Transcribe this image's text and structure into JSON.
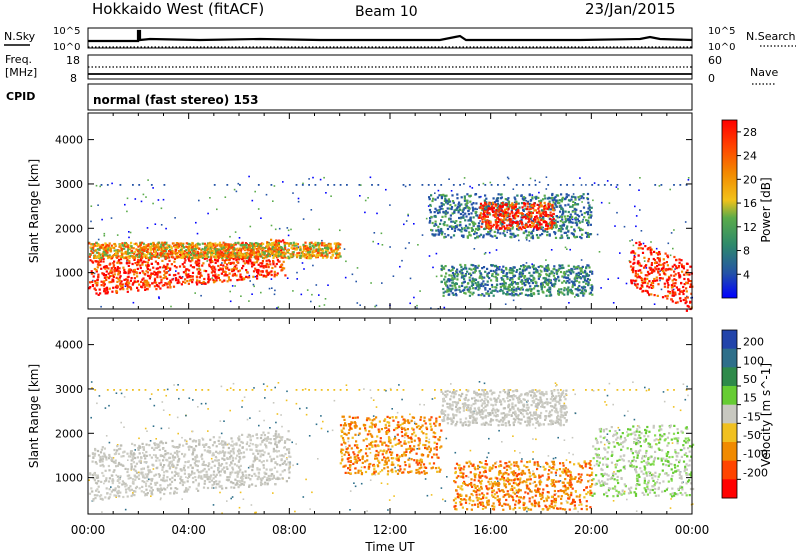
{
  "header": {
    "station": "Hokkaido West (fitACF)",
    "beam": "Beam 10",
    "date": "23/Jan/2015"
  },
  "params": {
    "nsky_label": "N.Sky",
    "nsearch_label": "N.Search",
    "noise_ticks": [
      "10^5",
      "10^0"
    ],
    "freq_label_1": "Freq.",
    "freq_label_2": "[MHz]",
    "freq_ticks": [
      "18",
      "8"
    ],
    "nave_label": "Nave",
    "nave_ticks": [
      "60",
      "0"
    ],
    "cpid_label": "CPID",
    "cpid_text": "normal (fast stereo) 153"
  },
  "chart_data": [
    {
      "type": "heatmap",
      "title": "",
      "xlabel": "Time UT",
      "ylabel": "Slant Range [km]",
      "xticks": [
        "00:00",
        "04:00",
        "08:00",
        "12:00",
        "16:00",
        "20:00",
        "00:00"
      ],
      "xlim_hours": [
        0,
        24
      ],
      "ylim": [
        180,
        4600
      ],
      "yticks": [
        1000,
        2000,
        3000,
        4000
      ],
      "colorbar": {
        "label": "Power [dB]",
        "ticks": [
          4,
          8,
          12,
          16,
          20,
          24,
          28
        ],
        "range": [
          0,
          30
        ],
        "colors": [
          "#0000ff",
          "#2453a6",
          "#2e8a6b",
          "#5aab4a",
          "#f2c21a",
          "#f28a00",
          "#ff4400",
          "#ff0000"
        ]
      },
      "features": [
        {
          "t_start": 0.0,
          "t_end": 7.8,
          "r_start": 500,
          "r_end": 1350,
          "level": "high",
          "shape": "rising band",
          "r_end_at_t_end": 1800
        },
        {
          "t_start": 0.0,
          "t_end": 10.0,
          "r_start": 1350,
          "r_end": 1700,
          "level": "medium"
        },
        {
          "t_start": 13.5,
          "t_end": 20.0,
          "r_start": 1800,
          "r_end": 2800,
          "level": "low-medium"
        },
        {
          "t_start": 15.5,
          "t_end": 18.5,
          "r_start": 2000,
          "r_end": 2600,
          "level": "high"
        },
        {
          "t_start": 14.0,
          "t_end": 20.0,
          "r_start": 500,
          "r_end": 1200,
          "level": "low",
          "shape": "descending streaks"
        },
        {
          "t_start": 21.5,
          "t_end": 24.0,
          "r_start": 700,
          "r_end": 1800,
          "level": "high",
          "shape": "descending band"
        }
      ]
    },
    {
      "type": "heatmap",
      "title": "",
      "xlabel": "Time UT",
      "ylabel": "Slant Range [km]",
      "xticks": [
        "00:00",
        "04:00",
        "08:00",
        "12:00",
        "16:00",
        "20:00",
        "00:00"
      ],
      "xlim_hours": [
        0,
        24
      ],
      "ylim": [
        180,
        4600
      ],
      "yticks": [
        1000,
        2000,
        3000,
        4000
      ],
      "colorbar": {
        "label": "Velocity [m s^-1]",
        "ticks": [
          200,
          100,
          50,
          15,
          -15,
          -50,
          -100,
          -200
        ],
        "range": [
          -250,
          250
        ],
        "colors": [
          "#2244aa",
          "#2e6f8a",
          "#2e8a4a",
          "#66cc33",
          "#c8c8c0",
          "#f0c020",
          "#f08a00",
          "#ff4400",
          "#ff0000"
        ]
      },
      "features": [
        {
          "t_start": 0.0,
          "t_end": 8.0,
          "r_start": 500,
          "r_end": 1700,
          "level": "near zero (grey)",
          "r_end_at_t_end": 2100
        },
        {
          "t_start": 10.0,
          "t_end": 14.0,
          "r_start": 1100,
          "r_end": 2400,
          "level": "negative (orange)"
        },
        {
          "t_start": 14.0,
          "t_end": 19.0,
          "r_start": 2200,
          "r_end": 3000,
          "level": "near zero (grey)"
        },
        {
          "t_start": 14.5,
          "t_end": 20.0,
          "r_start": 300,
          "r_end": 1400,
          "level": "negative (orange)",
          "shape": "descending streaks"
        },
        {
          "t_start": 20.0,
          "t_end": 24.0,
          "r_start": 600,
          "r_end": 2200,
          "level": "positive (green) and grey"
        }
      ]
    }
  ]
}
